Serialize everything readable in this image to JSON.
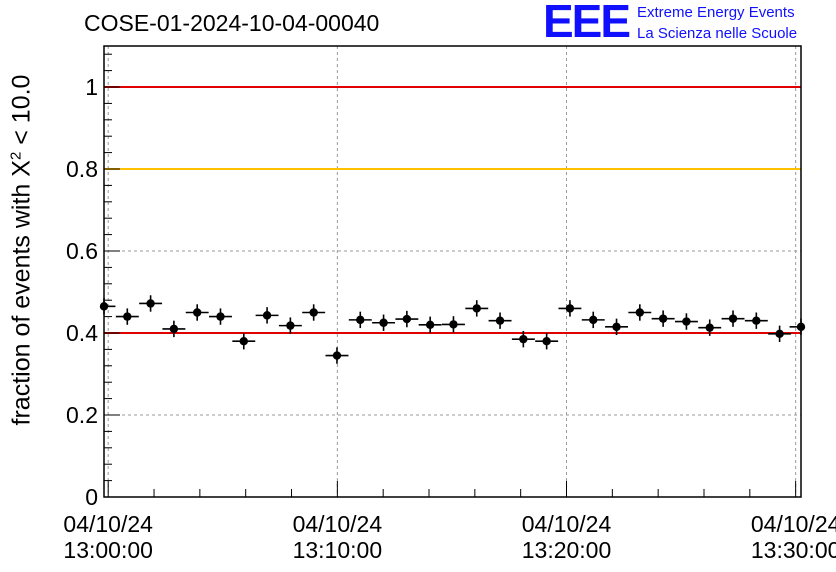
{
  "chart_data": {
    "type": "scatter",
    "title": "COSE-01-2024-10-04-00040",
    "ylabel_pre": "fraction of events with ",
    "ylabel_sym": "X",
    "ylabel_sup": "2",
    "ylabel_post": " < 10.0",
    "xlabel": "",
    "ylim": [
      0,
      1.1
    ],
    "yticks": [
      {
        "value": 0,
        "label": "0"
      },
      {
        "value": 0.2,
        "label": "0.2"
      },
      {
        "value": 0.4,
        "label": "0.4"
      },
      {
        "value": 0.6,
        "label": "0.6"
      },
      {
        "value": 0.8,
        "label": "0.8"
      },
      {
        "value": 1,
        "label": "1"
      }
    ],
    "xlim": [
      "2024-10-04 12:59:49",
      "2024-10-04 13:30:14"
    ],
    "xticks": [
      {
        "time": "2024-10-04 13:00:00",
        "date": "04/10/24",
        "clock": "13:00:00"
      },
      {
        "time": "2024-10-04 13:10:00",
        "date": "04/10/24",
        "clock": "13:10:00"
      },
      {
        "time": "2024-10-04 13:20:00",
        "date": "04/10/24",
        "clock": "13:20:00"
      },
      {
        "time": "2024-10-04 13:30:00",
        "date": "04/10/24",
        "clock": "13:30:00"
      }
    ],
    "grid": true,
    "reference_lines": [
      {
        "y": 1.0,
        "color": "#e00000"
      },
      {
        "y": 0.8,
        "color": "#ffc000"
      },
      {
        "y": 0.4,
        "color": "#e00000"
      }
    ],
    "series": [
      {
        "marker_color": "#000000",
        "x": [
          "2024-10-04 12:59:49",
          "2024-10-04 13:00:50",
          "2024-10-04 13:01:51",
          "2024-10-04 13:02:52",
          "2024-10-04 13:03:53",
          "2024-10-04 13:04:54",
          "2024-10-04 13:05:55",
          "2024-10-04 13:06:56",
          "2024-10-04 13:07:57",
          "2024-10-04 13:08:58",
          "2024-10-04 13:09:59",
          "2024-10-04 13:11:00",
          "2024-10-04 13:12:01",
          "2024-10-04 13:13:02",
          "2024-10-04 13:14:03",
          "2024-10-04 13:15:04",
          "2024-10-04 13:16:05",
          "2024-10-04 13:17:06",
          "2024-10-04 13:18:07",
          "2024-10-04 13:19:08",
          "2024-10-04 13:20:09",
          "2024-10-04 13:21:10",
          "2024-10-04 13:22:11",
          "2024-10-04 13:23:12",
          "2024-10-04 13:24:13",
          "2024-10-04 13:25:14",
          "2024-10-04 13:26:15",
          "2024-10-04 13:27:16",
          "2024-10-04 13:28:17",
          "2024-10-04 13:29:18",
          "2024-10-04 13:30:14"
        ],
        "values": [
          0.465,
          0.44,
          0.472,
          0.41,
          0.45,
          0.44,
          0.38,
          0.443,
          0.418,
          0.45,
          0.345,
          0.432,
          0.425,
          0.434,
          0.42,
          0.421,
          0.46,
          0.43,
          0.385,
          0.38,
          0.46,
          0.432,
          0.415,
          0.45,
          0.435,
          0.428,
          0.413,
          0.435,
          0.43,
          0.398,
          0.415
        ],
        "x_half_width_sec": 30,
        "y_error": 0.02
      }
    ]
  },
  "logo": {
    "mark": "EEE",
    "line1": "Extreme Energy Events",
    "line2": "La Scienza nelle Scuole"
  }
}
